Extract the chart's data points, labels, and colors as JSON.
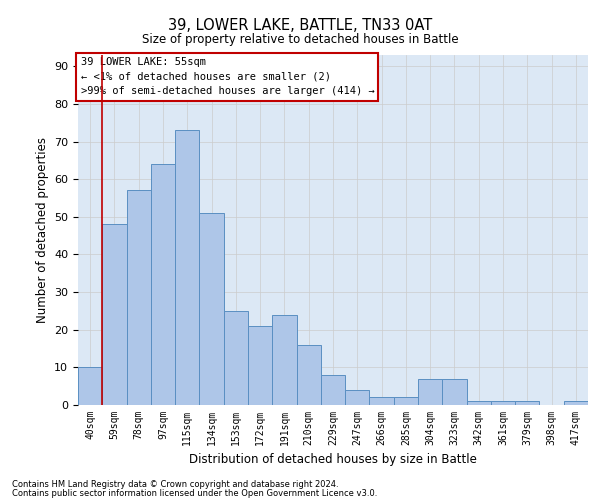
{
  "title1": "39, LOWER LAKE, BATTLE, TN33 0AT",
  "title2": "Size of property relative to detached houses in Battle",
  "xlabel": "Distribution of detached houses by size in Battle",
  "ylabel": "Number of detached properties",
  "categories": [
    "40sqm",
    "59sqm",
    "78sqm",
    "97sqm",
    "115sqm",
    "134sqm",
    "153sqm",
    "172sqm",
    "191sqm",
    "210sqm",
    "229sqm",
    "247sqm",
    "266sqm",
    "285sqm",
    "304sqm",
    "323sqm",
    "342sqm",
    "361sqm",
    "379sqm",
    "398sqm",
    "417sqm"
  ],
  "values": [
    10,
    48,
    57,
    64,
    73,
    51,
    25,
    21,
    24,
    16,
    8,
    4,
    2,
    2,
    7,
    7,
    1,
    1,
    1,
    0,
    1
  ],
  "bar_color": "#aec6e8",
  "bar_edge_color": "#5a8fc2",
  "highlight_color": "#c00000",
  "annotation_title": "39 LOWER LAKE: 55sqm",
  "annotation_line1": "← <1% of detached houses are smaller (2)",
  "annotation_line2": ">99% of semi-detached houses are larger (414) →",
  "annotation_box_color": "#ffffff",
  "annotation_box_edge": "#c00000",
  "ylim": [
    0,
    93
  ],
  "yticks": [
    0,
    10,
    20,
    30,
    40,
    50,
    60,
    70,
    80,
    90
  ],
  "footer1": "Contains HM Land Registry data © Crown copyright and database right 2024.",
  "footer2": "Contains public sector information licensed under the Open Government Licence v3.0.",
  "grid_color": "#cccccc",
  "background_color": "#dce8f5"
}
